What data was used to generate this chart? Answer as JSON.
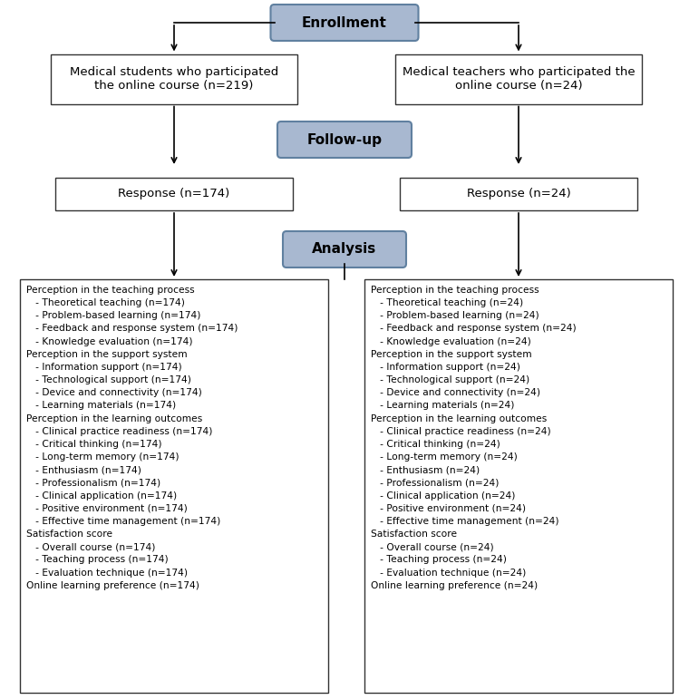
{
  "enrollment_label": "Enrollment",
  "followup_label": "Follow-up",
  "analysis_label": "Analysis",
  "students_box": "Medical students who participated\nthe online course (n=219)",
  "teachers_box": "Medical teachers who participated the\nonline course (n=24)",
  "response_students": "Response (n=174)",
  "response_teachers": "Response (n=24)",
  "analysis_left": [
    "Perception in the teaching process",
    "   - Theoretical teaching (n=174)",
    "   - Problem-based learning (n=174)",
    "   - Feedback and response system (n=174)",
    "   - Knowledge evaluation (n=174)",
    "Perception in the support system",
    "   - Information support (n=174)",
    "   - Technological support (n=174)",
    "   - Device and connectivity (n=174)",
    "   - Learning materials (n=174)",
    "Perception in the learning outcomes",
    "   - Clinical practice readiness (n=174)",
    "   - Critical thinking (n=174)",
    "   - Long-term memory (n=174)",
    "   - Enthusiasm (n=174)",
    "   - Professionalism (n=174)",
    "   - Clinical application (n=174)",
    "   - Positive environment (n=174)",
    "   - Effective time management (n=174)",
    "Satisfaction score",
    "   - Overall course (n=174)",
    "   - Teaching process (n=174)",
    "   - Evaluation technique (n=174)",
    "Online learning preference (n=174)"
  ],
  "analysis_right": [
    "Perception in the teaching process",
    "   - Theoretical teaching (n=24)",
    "   - Problem-based learning (n=24)",
    "   - Feedback and response system (n=24)",
    "   - Knowledge evaluation (n=24)",
    "Perception in the support system",
    "   - Information support (n=24)",
    "   - Technological support (n=24)",
    "   - Device and connectivity (n=24)",
    "   - Learning materials (n=24)",
    "Perception in the learning outcomes",
    "   - Clinical practice readiness (n=24)",
    "   - Critical thinking (n=24)",
    "   - Long-term memory (n=24)",
    "   - Enthusiasm (n=24)",
    "   - Professionalism (n=24)",
    "   - Clinical application (n=24)",
    "   - Positive environment (n=24)",
    "   - Effective time management (n=24)",
    "Satisfaction score",
    "   - Overall course (n=24)",
    "   - Teaching process (n=24)",
    "   - Evaluation technique (n=24)",
    "Online learning preference (n=24)"
  ],
  "header_box_color": "#a8b8d0",
  "header_box_edge": "#6080a0",
  "white_box_edge": "#333333",
  "bg_color": "#ffffff",
  "text_color": "#000000",
  "header_text_color": "#000000",
  "figw": 7.6,
  "figh": 7.72,
  "dpi": 100
}
